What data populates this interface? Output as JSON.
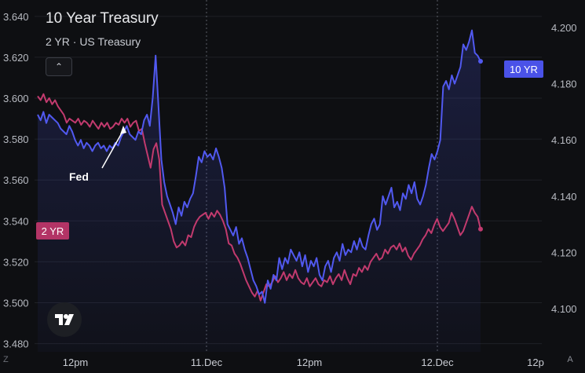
{
  "chart_data": {
    "type": "line",
    "title": "10 Year Treasury",
    "subtitle": "2 YR · US Treasury",
    "x_ticks": [
      "12pm",
      "11.Dec",
      "12pm",
      "12.Dec",
      "12p"
    ],
    "left_axis": {
      "ticks": [
        "3.640",
        "3.620",
        "3.600",
        "3.580",
        "3.560",
        "3.540",
        "3.520",
        "3.500",
        "3.480"
      ],
      "range": [
        3.476,
        3.648
      ]
    },
    "right_axis": {
      "ticks": [
        "4.200",
        "4.180",
        "4.160",
        "4.140",
        "4.120",
        "4.100"
      ],
      "range": [
        4.0846,
        4.2098
      ]
    },
    "grid": true,
    "series": [
      {
        "name": "10 YR",
        "axis": "right",
        "color": "#5159f0",
        "last_value_label": "10 YR",
        "values": [
          4.169,
          4.167,
          4.17,
          4.166,
          4.169,
          4.168,
          4.167,
          4.166,
          4.164,
          4.163,
          4.162,
          4.165,
          4.163,
          4.16,
          4.158,
          4.16,
          4.157,
          4.159,
          4.158,
          4.156,
          4.158,
          4.159,
          4.157,
          4.158,
          4.156,
          4.158,
          4.157,
          4.159,
          4.158,
          4.161,
          4.163,
          4.165,
          4.162,
          4.161,
          4.16,
          4.163,
          4.162,
          4.167,
          4.169,
          4.165,
          4.175,
          4.19,
          4.172,
          4.153,
          4.145,
          4.14,
          4.137,
          4.134,
          4.13,
          4.136,
          4.133,
          4.138,
          4.136,
          4.139,
          4.141,
          4.147,
          4.154,
          4.152,
          4.156,
          4.154,
          4.155,
          4.153,
          4.157,
          4.154,
          4.15,
          4.143,
          4.13,
          4.128,
          4.126,
          4.129,
          4.123,
          4.125,
          4.121,
          4.118,
          4.114,
          4.11,
          4.108,
          4.105,
          4.106,
          4.102,
          4.11,
          4.107,
          4.112,
          4.11,
          4.118,
          4.114,
          4.118,
          4.116,
          4.121,
          4.119,
          4.117,
          4.12,
          4.115,
          4.119,
          4.113,
          4.117,
          4.115,
          4.118,
          4.112,
          4.11,
          4.115,
          4.117,
          4.113,
          4.118,
          4.12,
          4.117,
          4.123,
          4.119,
          4.121,
          4.12,
          4.124,
          4.121,
          4.125,
          4.122,
          4.121,
          4.126,
          4.13,
          4.132,
          4.128,
          4.13,
          4.14,
          4.137,
          4.14,
          4.143,
          4.136,
          4.138,
          4.135,
          4.141,
          4.139,
          4.144,
          4.141,
          4.145,
          4.139,
          4.137,
          4.14,
          4.144,
          4.15,
          4.155,
          4.153,
          4.156,
          4.16,
          4.179,
          4.181,
          4.178,
          4.183,
          4.18,
          4.183,
          4.186,
          4.194,
          4.192,
          4.195,
          4.199,
          4.191,
          4.19,
          4.188
        ]
      },
      {
        "name": "2 YR",
        "axis": "left",
        "color": "#c23a6e",
        "last_value_label": "2 YR",
        "values": [
          3.601,
          3.599,
          3.602,
          3.598,
          3.6,
          3.597,
          3.599,
          3.596,
          3.594,
          3.592,
          3.588,
          3.59,
          3.589,
          3.588,
          3.59,
          3.587,
          3.589,
          3.588,
          3.586,
          3.589,
          3.587,
          3.585,
          3.588,
          3.586,
          3.588,
          3.585,
          3.586,
          3.588,
          3.587,
          3.59,
          3.588,
          3.59,
          3.586,
          3.588,
          3.589,
          3.584,
          3.585,
          3.578,
          3.572,
          3.566,
          3.575,
          3.578,
          3.57,
          3.548,
          3.544,
          3.54,
          3.536,
          3.53,
          3.527,
          3.528,
          3.53,
          3.528,
          3.533,
          3.532,
          3.537,
          3.54,
          3.542,
          3.543,
          3.544,
          3.541,
          3.544,
          3.542,
          3.545,
          3.543,
          3.54,
          3.536,
          3.529,
          3.528,
          3.524,
          3.522,
          3.519,
          3.515,
          3.511,
          3.508,
          3.505,
          3.503,
          3.506,
          3.501,
          3.505,
          3.509,
          3.508,
          3.51,
          3.513,
          3.51,
          3.512,
          3.515,
          3.511,
          3.514,
          3.512,
          3.516,
          3.512,
          3.51,
          3.509,
          3.512,
          3.508,
          3.51,
          3.512,
          3.509,
          3.508,
          3.511,
          3.51,
          3.513,
          3.509,
          3.512,
          3.514,
          3.511,
          3.516,
          3.512,
          3.509,
          3.514,
          3.513,
          3.517,
          3.515,
          3.518,
          3.516,
          3.52,
          3.522,
          3.524,
          3.521,
          3.522,
          3.526,
          3.524,
          3.527,
          3.528,
          3.526,
          3.529,
          3.525,
          3.527,
          3.523,
          3.521,
          3.524,
          3.526,
          3.528,
          3.531,
          3.533,
          3.536,
          3.534,
          3.538,
          3.541,
          3.537,
          3.535,
          3.537,
          3.539,
          3.544,
          3.541,
          3.537,
          3.533,
          3.535,
          3.539,
          3.543,
          3.547,
          3.544,
          3.542,
          3.536
        ]
      }
    ],
    "annotations": [
      {
        "text": "Fed"
      }
    ]
  },
  "ui": {
    "collapse_glyph": "⌃",
    "bottom_left": "Z",
    "bottom_right": "A"
  }
}
